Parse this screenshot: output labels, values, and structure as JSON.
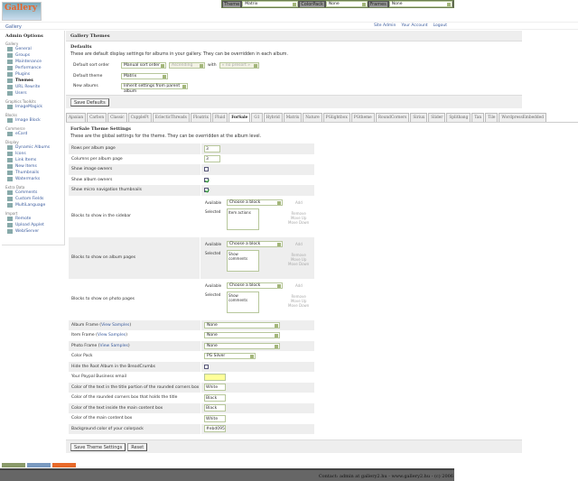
{
  "topbar": {
    "theme_label": "Theme",
    "theme_value": "Matrix",
    "colorpack_label": "ColorPack",
    "colorpack_value": "None",
    "frames_label": "Frames",
    "frames_value": "None"
  },
  "logo": "Gallery",
  "breadcrumb": "Gallery",
  "top_links": [
    "Site Admin",
    "Your Account",
    "Logout"
  ],
  "sidebar": {
    "title": "Admin Options",
    "groups": [
      {
        "label": "Gallery",
        "items": [
          "General",
          "Groups",
          "Maintenance",
          "Performance",
          "Plugins",
          "Themes",
          "URL Rewrite",
          "Users"
        ],
        "current": "Themes"
      },
      {
        "label": "Graphics Toolkits",
        "items": [
          "ImageMagick"
        ]
      },
      {
        "label": "Blocks",
        "items": [
          "Image Block"
        ]
      },
      {
        "label": "Commerce",
        "items": [
          "eCard"
        ]
      },
      {
        "label": "Display",
        "items": [
          "Dynamic Albums",
          "Icons",
          "Link Items",
          "New Items",
          "Thumbnails",
          "Watermarks"
        ]
      },
      {
        "label": "Extra Data",
        "items": [
          "Comments",
          "Custom Fields",
          "MultiLanguage"
        ]
      },
      {
        "label": "Import",
        "items": [
          "Remote",
          "Upload Applet",
          "Web/Server"
        ]
      }
    ]
  },
  "main": {
    "title": "Gallery Themes",
    "defaults_heading": "Defaults",
    "defaults_desc": "These are default display settings for albums in your gallery. They can be overridden in each album.",
    "sort_label": "Default sort order",
    "sort_value": "Manual sort order",
    "sort_dir": "Ascending",
    "with_label": "with",
    "with_value": "« no presort »",
    "theme_label": "Default theme",
    "theme_value": "Matrix",
    "new_albums_label": "New albums",
    "new_albums_value": "Inherit settings from parent album",
    "save_defaults": "Save Defaults"
  },
  "tabs": [
    "Ajaxian",
    "Carbon",
    "Classic",
    "CuppleFt",
    "EclecticThreads",
    "Floatrix",
    "Fluid",
    "ForSale",
    "G1",
    "Hybrid",
    "Matrix",
    "Nature",
    "PGlightbox",
    "PGtheme",
    "RoundCorners",
    "Siriux",
    "Slider",
    "Splitbang",
    "Tan",
    "Tile",
    "WordpressEmbedded"
  ],
  "active_tab": "ForSale",
  "settings": {
    "heading": "ForSale Theme Settings",
    "desc": "These are the global settings for the theme. They can be overridden at the album level.",
    "rows_label": "Rows per album page",
    "rows_value": "3",
    "cols_label": "Columns per album page",
    "cols_value": "3",
    "image_owners_label": "Show image owners",
    "image_owners": false,
    "album_owners_label": "Show album owners",
    "album_owners": true,
    "micro_nav_label": "Show micro navigation thumbnails",
    "micro_nav": true,
    "blocks": [
      {
        "label": "Blocks to show in the sidebar",
        "selected": "Item actions"
      },
      {
        "label": "Blocks to show on album pages",
        "selected": "Show comments"
      },
      {
        "label": "Blocks to show on photo pages",
        "selected": "Show comments"
      }
    ],
    "available_label": "Available",
    "selected_label": "Selected",
    "choose_block": "Choose a block",
    "add": "Add",
    "remove": "Remove",
    "move_up": "Move Up",
    "move_down": "Move Down",
    "view_samples": "View Samples",
    "album_frame_label": "Album Frame",
    "album_frame": "None",
    "item_frame_label": "Item Frame",
    "item_frame": "None",
    "photo_frame_label": "Photo Frame",
    "photo_frame": "None",
    "color_pack_label": "Color Pack",
    "color_pack": "PG Silver",
    "hide_root_label": "Hide the Root Album in the BreadCrumbs",
    "hide_root": false,
    "paypal_label": "Your Paypal Business email",
    "paypal_value": "",
    "c1_label": "Color of the text in the title portion of the rounded corners box",
    "c1": "White",
    "c2_label": "Color of the rounded corners box that holds the title",
    "c2": "Black",
    "c3_label": "Color of the text inside the main content box",
    "c3": "Black",
    "c4_label": "Color of the main content box",
    "c4": "White",
    "c5_label": "Background color of your colorpack",
    "c5": "#ebd095",
    "save": "Save Theme Settings",
    "reset": "Reset"
  },
  "footer": "Contact: admin at gallery2.hu - www.gallery2.hu - (c) 2006",
  "colors": {
    "accent": "#3b5c9e",
    "panel": "#eeeeee",
    "footer": "#666666",
    "select_border": "#b7c79b"
  }
}
